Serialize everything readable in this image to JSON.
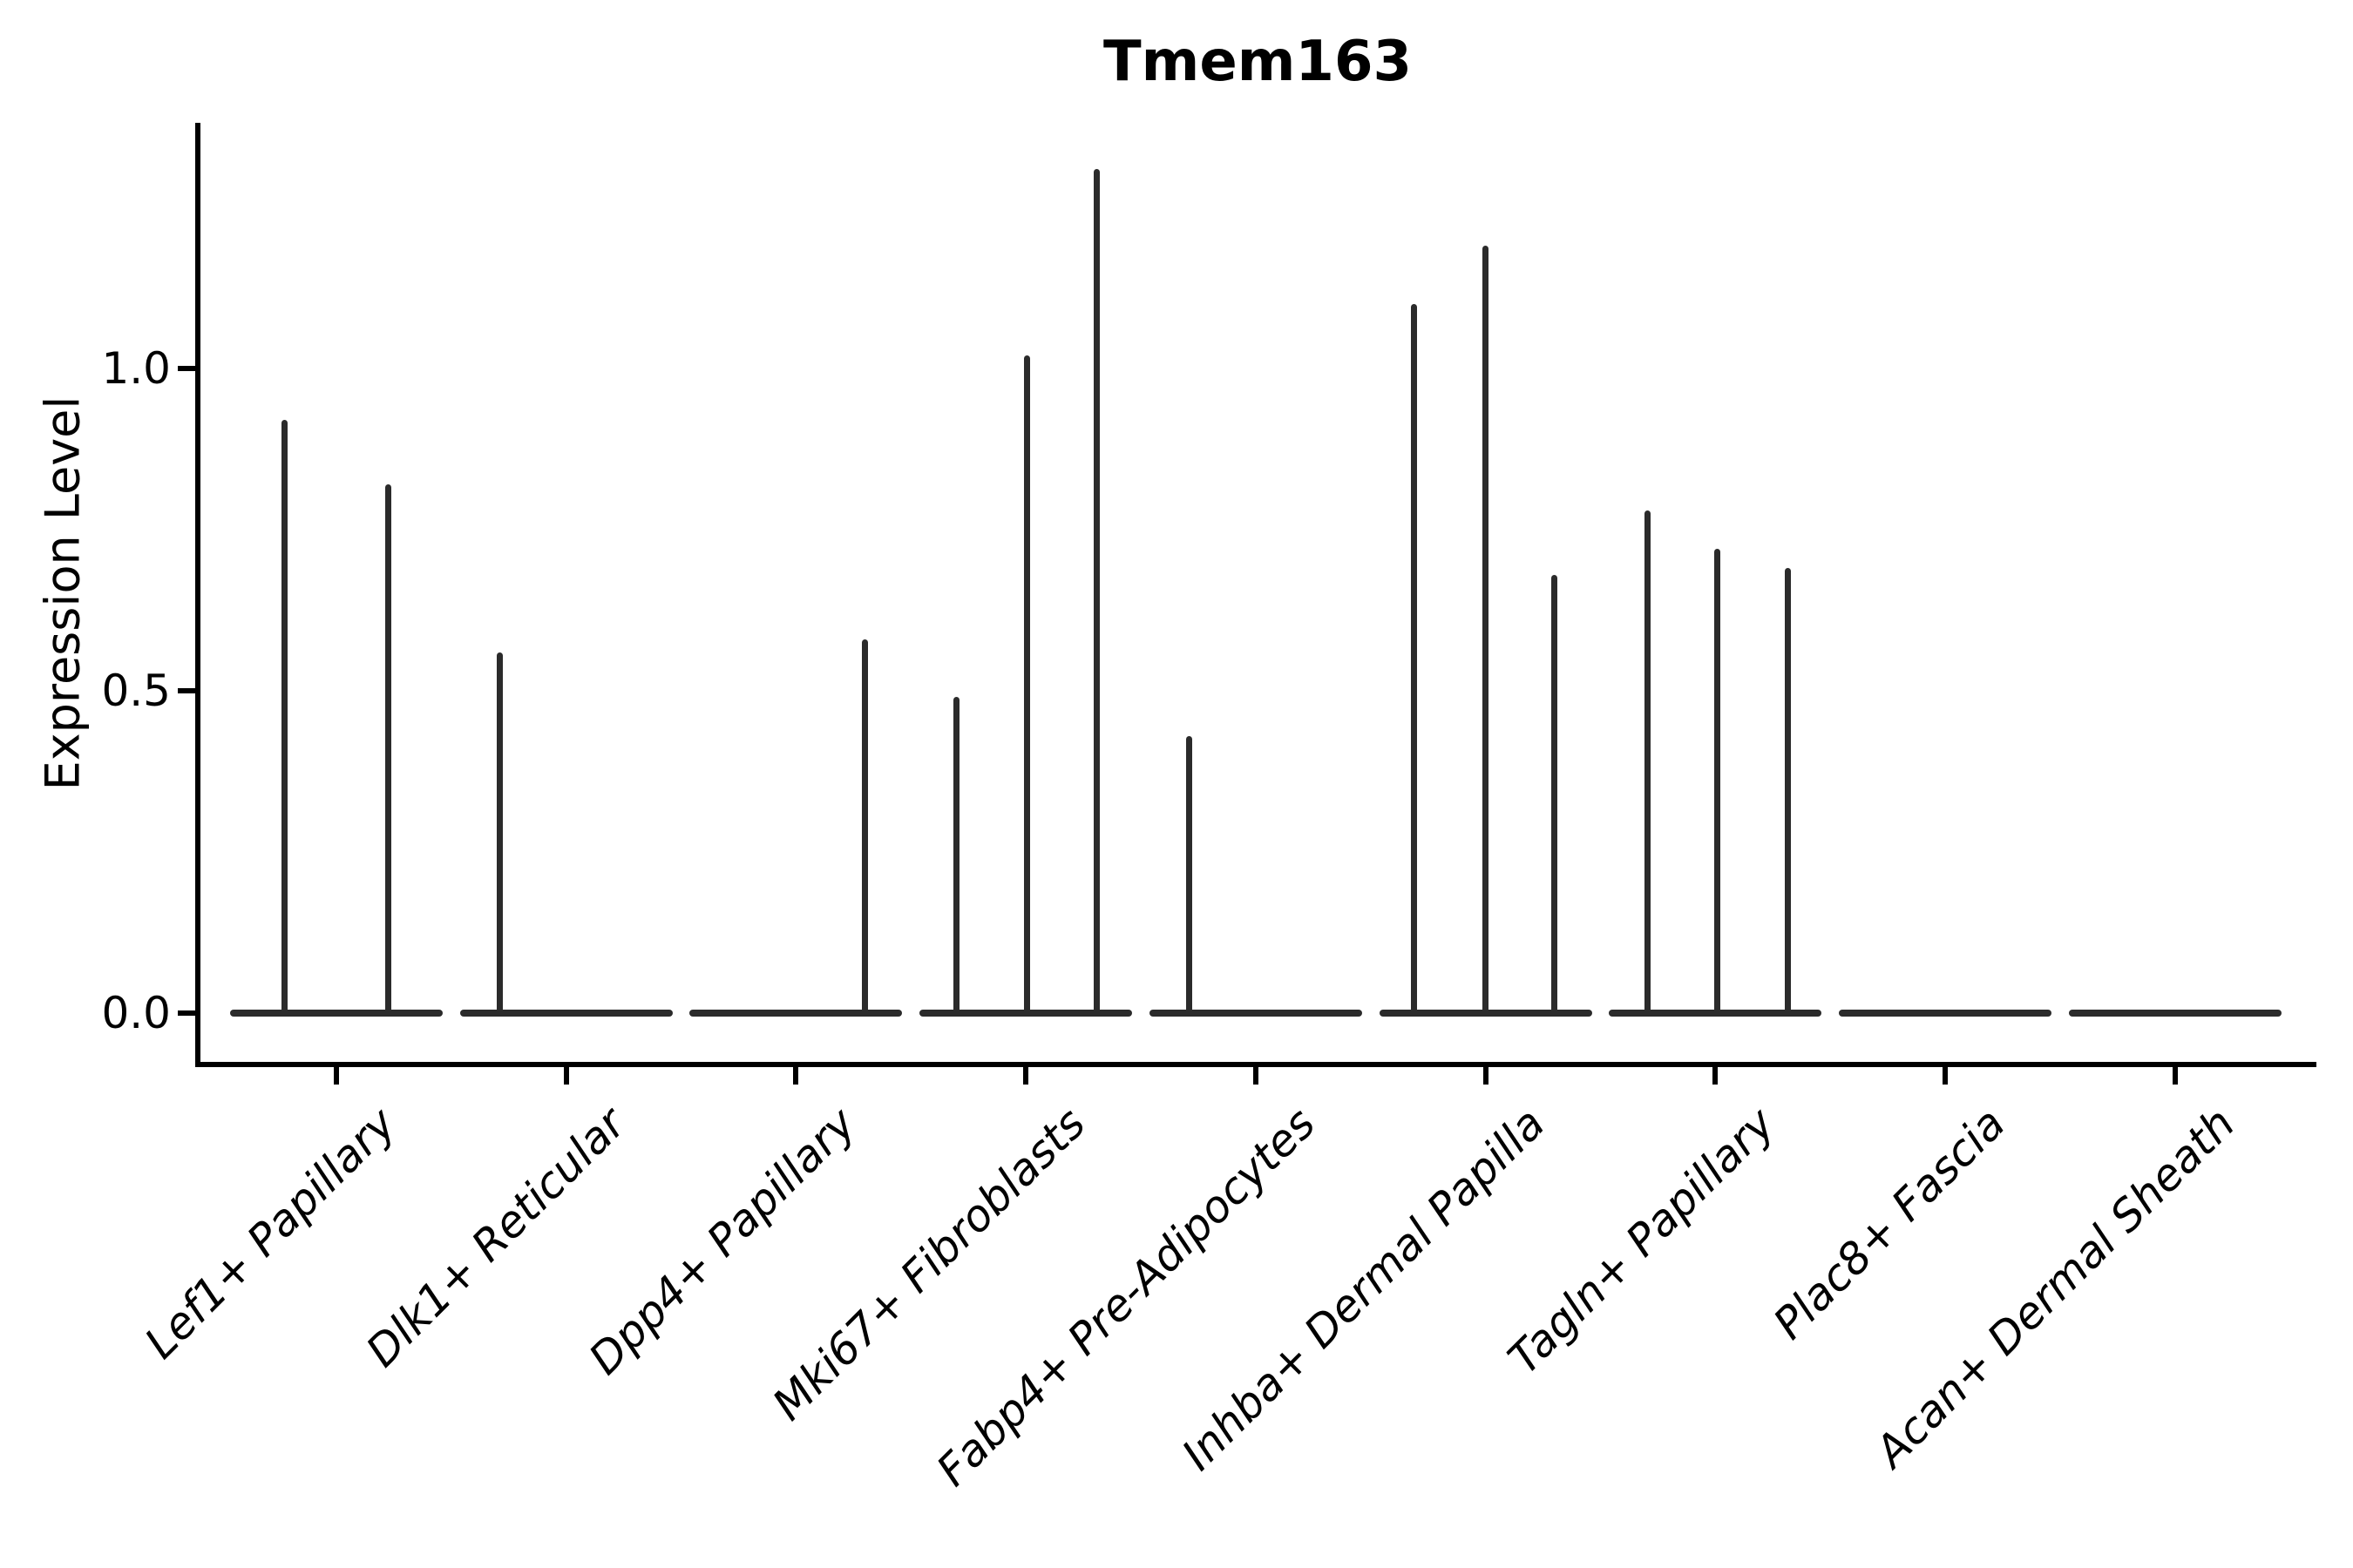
{
  "chart_data": {
    "type": "violin",
    "title": "Tmem163",
    "ylabel": "Expression Level",
    "ytick_values": [
      0.0,
      0.5,
      1.0
    ],
    "ytick_labels": [
      "0.0",
      "0.5",
      "1.0"
    ],
    "ylim": [
      -0.08,
      1.38
    ],
    "grid": false,
    "legend": "none",
    "violin_color": "#2b2b2b",
    "axis_color": "#000000",
    "categories": [
      "Lef1+ Papillary",
      "Dlk1+ Reticular",
      "Dpp4+ Papillary",
      "Mki67+ Fibroblasts",
      "Fabp4+ Pre-Adipocytes",
      "Inhba+ Dermal Papilla",
      "Tagln+ Papillary",
      "Plac8+ Fascia",
      "Acan+ Dermal Sheath"
    ],
    "groups": [
      {
        "label": "Lef1+ Papillary",
        "spikes": [
          {
            "offset": -0.2275,
            "value": 0.92
          },
          {
            "offset": 0.2275,
            "value": 0.82
          }
        ]
      },
      {
        "label": "Dlk1+ Reticular",
        "spikes": [
          {
            "offset": -0.29,
            "value": 0.56
          }
        ]
      },
      {
        "label": "Dpp4+ Papillary",
        "spikes": [
          {
            "offset": 0.3,
            "value": 0.58
          }
        ]
      },
      {
        "label": "Mki67+ Fibroblasts",
        "spikes": [
          {
            "offset": -0.3,
            "value": 0.49
          },
          {
            "offset": 0.005,
            "value": 1.02
          },
          {
            "offset": 0.31,
            "value": 1.31
          }
        ]
      },
      {
        "label": "Fabp4+ Pre-Adipocytes",
        "spikes": [
          {
            "offset": -0.29,
            "value": 0.43
          }
        ]
      },
      {
        "label": "Inhba+ Dermal Papilla",
        "spikes": [
          {
            "offset": -0.31,
            "value": 1.1
          },
          {
            "offset": 0.0,
            "value": 1.19
          },
          {
            "offset": 0.3,
            "value": 0.68
          }
        ]
      },
      {
        "label": "Tagln+ Papillary",
        "spikes": [
          {
            "offset": -0.295,
            "value": 0.78
          },
          {
            "offset": 0.01,
            "value": 0.72
          },
          {
            "offset": 0.315,
            "value": 0.69
          }
        ]
      },
      {
        "label": "Plac8+ Fascia",
        "spikes": []
      },
      {
        "label": "Acan+ Dermal Sheath",
        "spikes": []
      }
    ]
  }
}
